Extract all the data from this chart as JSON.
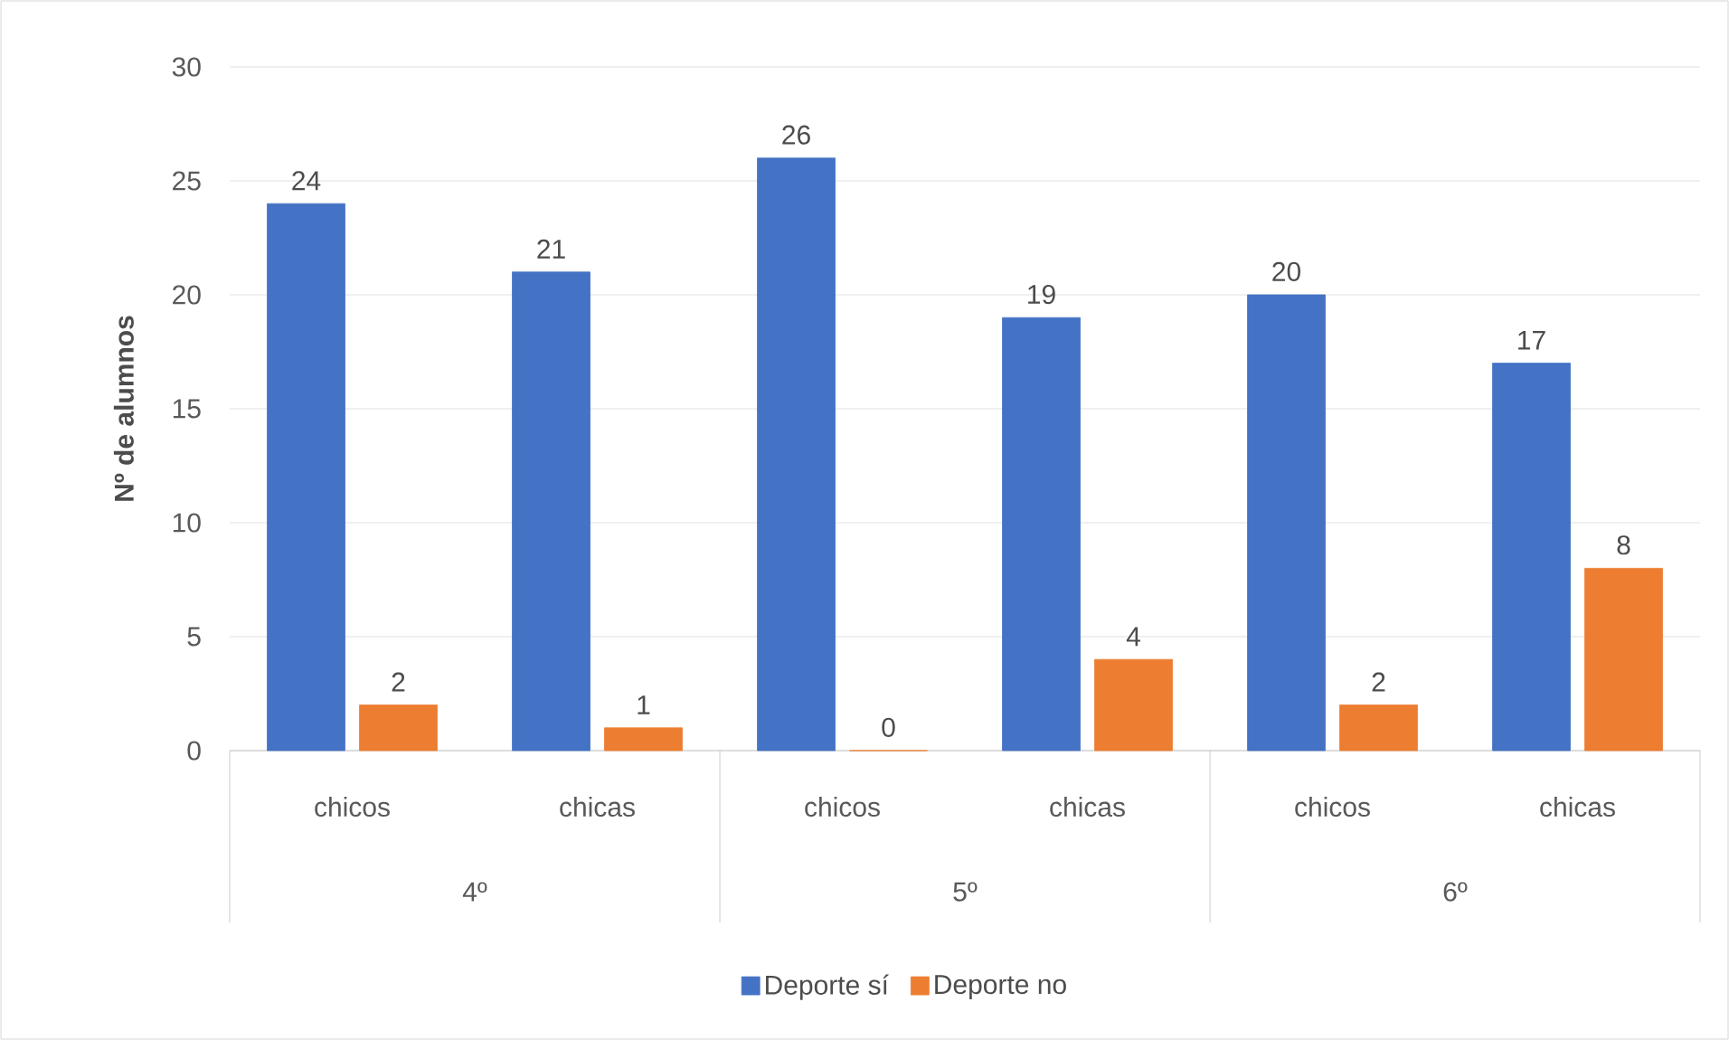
{
  "chart_data": {
    "type": "bar",
    "ylabel": "**Nº de alumnos**",
    "categories": [
      "chicos",
      "chicas",
      "chicos",
      "chicas",
      "chicos",
      "chicas"
    ],
    "annotations": [
      "4º",
      "5º",
      "6º"
    ],
    "series": [
      {
        "name": "Deporte sí",
        "color": "#4472c4",
        "values": [
          24,
          21,
          26,
          19,
          20,
          17
        ]
      },
      {
        "name": "Deporte no",
        "color": "#ed7d31",
        "values": [
          2,
          1,
          0,
          4,
          2,
          8
        ]
      }
    ],
    "ylim": [
      0,
      30
    ],
    "yticks": [
      0,
      5,
      10,
      15,
      20,
      25,
      30
    ],
    "grid": "y",
    "legend": "bottom",
    "data_labels": true
  }
}
